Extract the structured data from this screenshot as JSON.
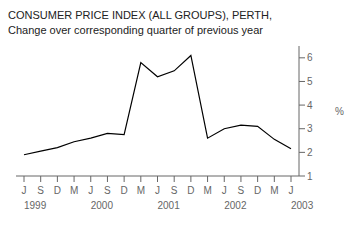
{
  "chart_data": {
    "type": "line",
    "title": "CONSUMER PRICE INDEX (ALL GROUPS), PERTH,",
    "subtitle": "Change over corresponding quarter of previous year",
    "y_label": "%",
    "categories": [
      "J",
      "S",
      "D",
      "M",
      "J",
      "S",
      "D",
      "M",
      "J",
      "S",
      "D",
      "M",
      "J",
      "S",
      "D",
      "M",
      "J"
    ],
    "values": [
      1.9,
      2.05,
      2.2,
      2.45,
      2.6,
      2.8,
      2.75,
      5.8,
      5.2,
      5.45,
      6.1,
      2.6,
      3.0,
      3.15,
      3.1,
      2.55,
      2.15
    ],
    "color": "#000000",
    "ylim": [
      1,
      6.5
    ],
    "yticks": [
      1,
      2,
      3,
      4,
      5,
      6
    ],
    "grid": false,
    "annotations": [
      {
        "text": "1999",
        "category": 0
      },
      {
        "text": "2000",
        "category": 4
      },
      {
        "text": "2001",
        "category": 8
      },
      {
        "text": "2002",
        "category": 12
      },
      {
        "text": "2003",
        "category": 16
      }
    ]
  }
}
